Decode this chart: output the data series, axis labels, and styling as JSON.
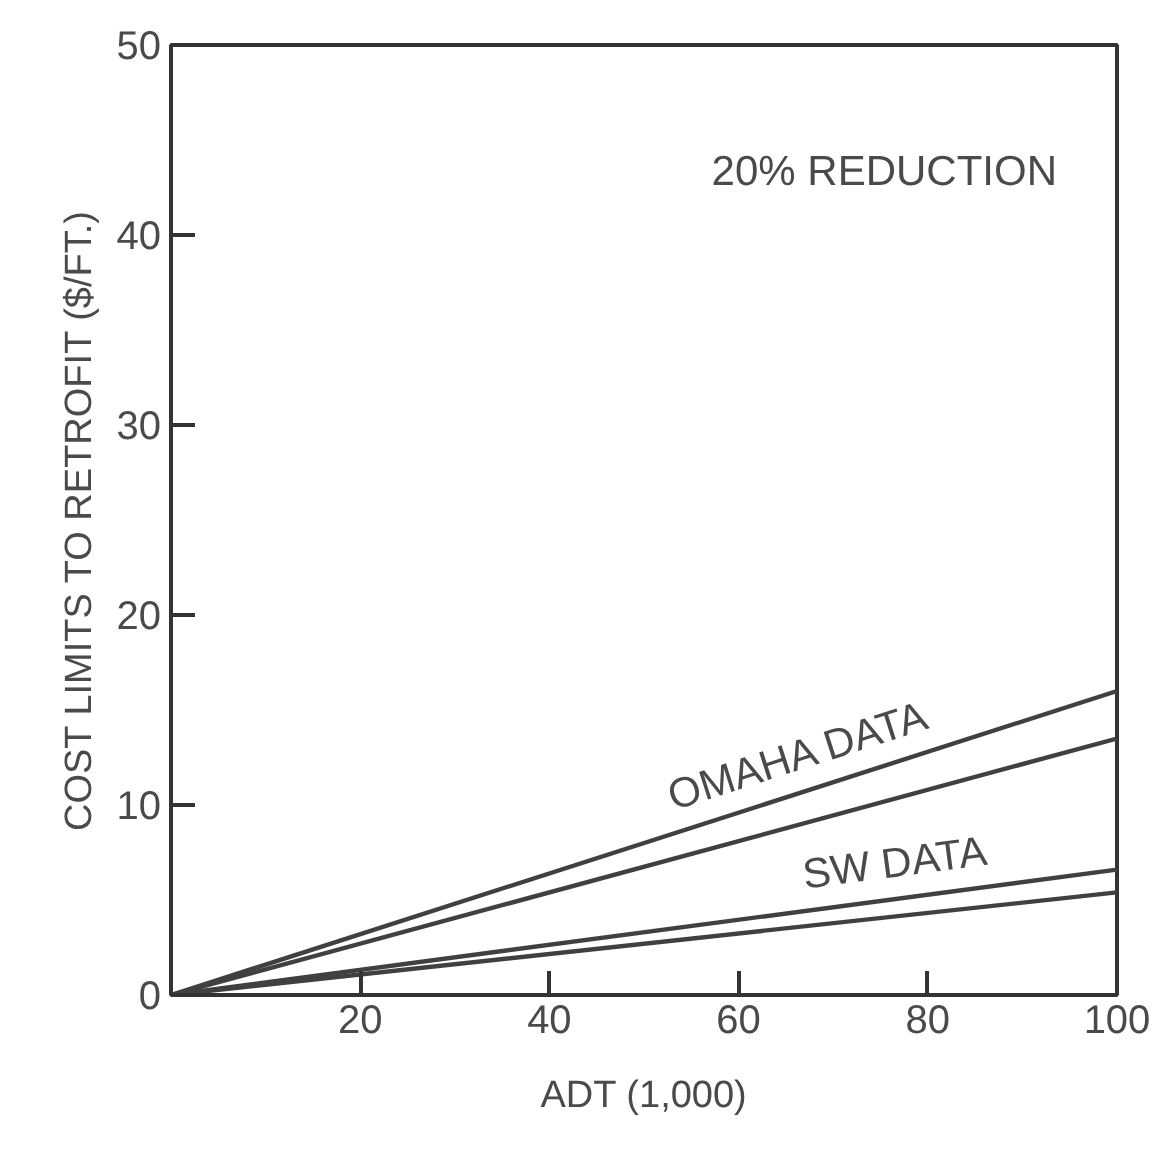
{
  "chart_data": {
    "type": "line",
    "xlabel": "ADT (1,000)",
    "ylabel": "COST LIMITS TO RETROFIT ($/FT.)",
    "x": [
      0,
      100
    ],
    "series": [
      {
        "color": "#404040",
        "values": [
          0,
          16.0
        ]
      },
      {
        "color": "#404040",
        "values": [
          0,
          13.5
        ]
      },
      {
        "color": "#404040",
        "values": [
          0,
          6.6
        ]
      },
      {
        "color": "#404040",
        "values": [
          0,
          5.4
        ]
      }
    ],
    "xlim": [
      0,
      100
    ],
    "ylim": [
      0,
      50
    ],
    "xticks": [
      20,
      40,
      60,
      80,
      100
    ],
    "yticks": [
      0,
      10,
      20,
      30,
      40,
      50
    ],
    "annotations": [
      "20% REDUCTION",
      "OMAHA DATA",
      "SW DATA"
    ],
    "grid": false,
    "marker": "none",
    "line_style": "solid"
  }
}
